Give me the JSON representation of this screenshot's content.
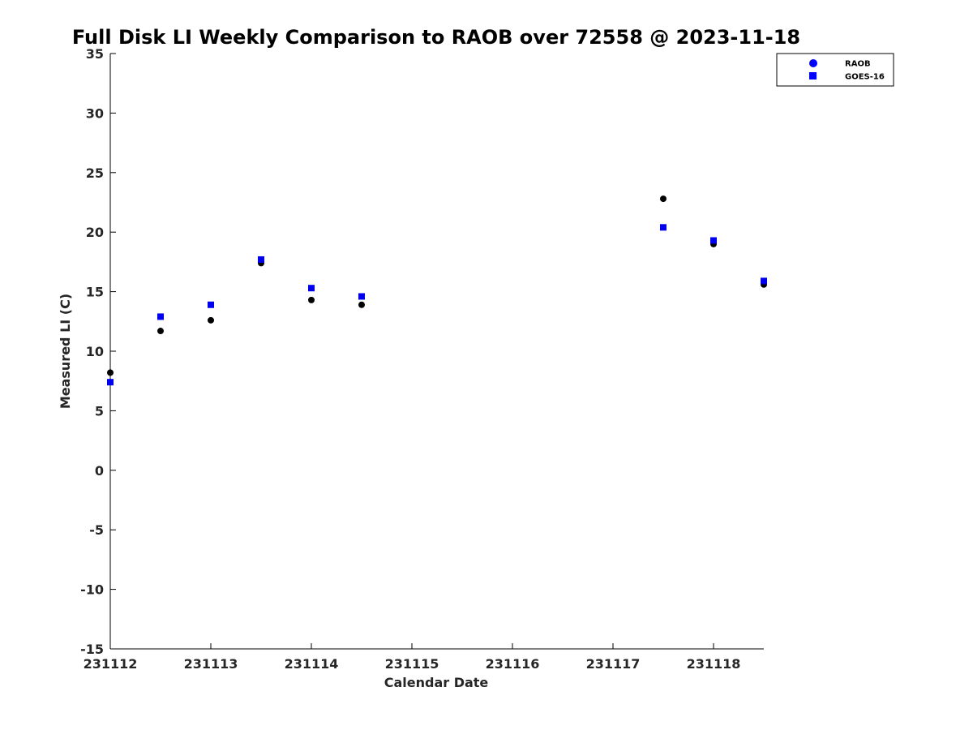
{
  "chart_data": {
    "type": "scatter",
    "title": "Full Disk LI Weekly Comparison to RAOB over 72558 @ 2023-11-18",
    "xlabel": "Calendar Date",
    "ylabel": "Measured LI (C)",
    "xlim": [
      231112,
      231118.5
    ],
    "ylim": [
      -15,
      35
    ],
    "x_ticks": [
      231112,
      231113,
      231114,
      231115,
      231116,
      231117,
      231118
    ],
    "x_tick_labels": [
      "231112",
      "231113",
      "231114",
      "231115",
      "231116",
      "231117",
      "231118"
    ],
    "y_ticks": [
      -15,
      -10,
      -5,
      0,
      5,
      10,
      15,
      20,
      25,
      30,
      35
    ],
    "y_tick_labels": [
      "-15",
      "-10",
      "-5",
      "0",
      "5",
      "10",
      "15",
      "20",
      "25",
      "30",
      "35"
    ],
    "legend_position": "top-right",
    "grid": false,
    "series": [
      {
        "name": "RAOB",
        "marker": "circle",
        "color": "#000000",
        "legend_color": "#0000ff",
        "x": [
          231112,
          231112.5,
          231113,
          231113.5,
          231114,
          231114.5,
          231117.5,
          231118,
          231118.5
        ],
        "y": [
          8.2,
          11.7,
          12.6,
          17.4,
          14.3,
          13.9,
          22.8,
          19.0,
          15.6
        ]
      },
      {
        "name": "GOES-16",
        "marker": "square",
        "color": "#0000ee",
        "legend_color": "#0000ff",
        "x": [
          231112,
          231112.5,
          231113,
          231113.5,
          231114,
          231114.5,
          231117.5,
          231118,
          231118.5
        ],
        "y": [
          7.4,
          12.9,
          13.9,
          17.7,
          15.3,
          14.6,
          20.4,
          19.3,
          15.9
        ]
      }
    ]
  }
}
